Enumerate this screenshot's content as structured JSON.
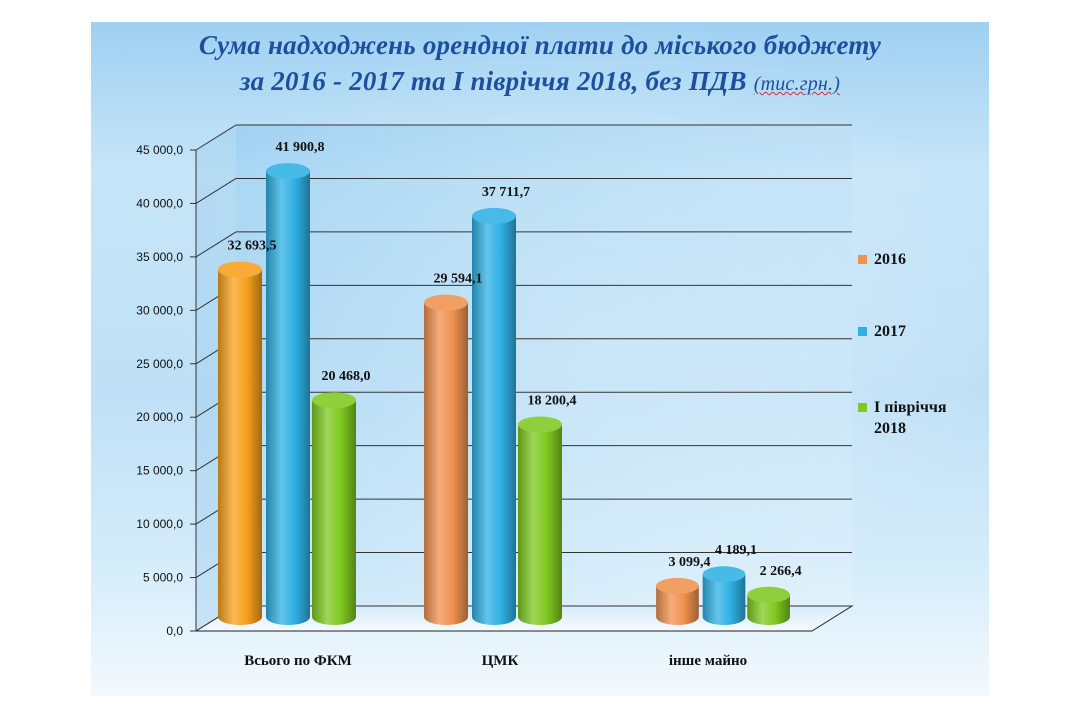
{
  "title": {
    "line1": "Сума надходжень орендної плати до міського бюджету",
    "line2": "за 2016 - 2017 та І півріччя 2018, без ПДВ",
    "unit": "(тис.грн.)"
  },
  "chart_data": {
    "type": "bar",
    "title": "Сума надходжень орендної плати до міського бюджету за 2016 - 2017 та І півріччя 2018, без ПДВ (тис.грн.)",
    "categories": [
      "Всього по ФКМ",
      "ЦМК",
      "інше майно"
    ],
    "series": [
      {
        "name": "2016",
        "values": [
          32693.5,
          29594.1,
          3099.4
        ],
        "labels": [
          "32 693,5",
          "29 594,1",
          "3 099,4"
        ],
        "color": "#f0924f",
        "first_color": "#f7a11c"
      },
      {
        "name": "2017",
        "values": [
          41900.8,
          37711.7,
          4189.1
        ],
        "labels": [
          "41 900,8",
          "37 711,7",
          "4 189,1"
        ],
        "color": "#2fb1e4"
      },
      {
        "name": "І півріччя 2018",
        "values": [
          20468.0,
          18200.4,
          2266.4
        ],
        "labels": [
          "20 468,0",
          "18 200,4",
          "2 266,4"
        ],
        "color": "#7fc920"
      }
    ],
    "y_ticks": [
      "0,0",
      "5 000,0",
      "10 000,0",
      "15 000,0",
      "20 000,0",
      "25 000,0",
      "30 000,0",
      "35 000,0",
      "40 000,0",
      "45 000,0"
    ],
    "ylim": [
      0,
      45000
    ],
    "grid": true,
    "legend": "right",
    "style": "3d-cylinder"
  },
  "legend": [
    {
      "line1": "2016",
      "line2": "",
      "color": "#f0924f"
    },
    {
      "line1": "2017",
      "line2": "",
      "color": "#2fb1e4"
    },
    {
      "line1": "І півріччя",
      "line2": "2018",
      "color": "#7fc920"
    }
  ]
}
